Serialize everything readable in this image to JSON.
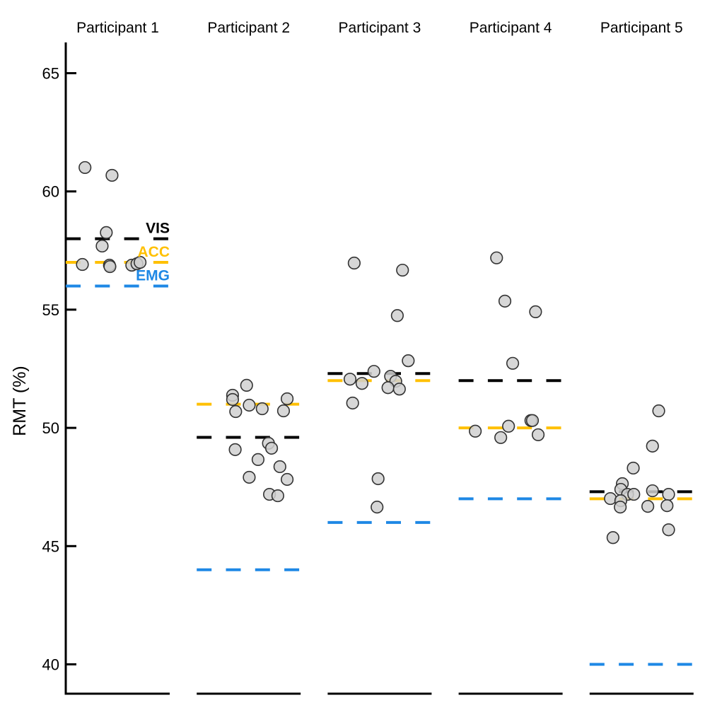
{
  "chart_data": {
    "type": "scatter",
    "title": "",
    "xlabel": "",
    "ylabel": "RMT (%)",
    "ylim": [
      38.76,
      66.3
    ],
    "yticks": [
      40,
      45,
      50,
      55,
      60,
      65
    ],
    "categories": [
      "Participant 1",
      "Participant 2",
      "Participant 3",
      "Participant 4",
      "Participant 5"
    ],
    "reference_lines": [
      {
        "name": "VIS",
        "color": "#000000",
        "values": [
          58,
          49.6,
          52.3,
          52,
          47.3
        ]
      },
      {
        "name": "ACC",
        "color": "#FFC000",
        "values": [
          57,
          51,
          52,
          50,
          47
        ]
      },
      {
        "name": "EMG",
        "color": "#1E88E5",
        "values": [
          56,
          44,
          46,
          47,
          40
        ]
      }
    ],
    "line_labels_in_category": "Participant 1",
    "points": [
      [
        {
          "x": -0.63,
          "y": 61.01
        },
        {
          "x": -0.11,
          "y": 60.68
        },
        {
          "x": -0.22,
          "y": 58.26
        },
        {
          "x": -0.3,
          "y": 57.69
        },
        {
          "x": -0.68,
          "y": 56.91
        },
        {
          "x": -0.16,
          "y": 56.88
        },
        {
          "x": -0.15,
          "y": 56.82
        },
        {
          "x": 0.27,
          "y": 56.88
        },
        {
          "x": 0.37,
          "y": 56.94
        },
        {
          "x": 0.43,
          "y": 57.0
        }
      ],
      [
        {
          "x": -0.04,
          "y": 51.8
        },
        {
          "x": -0.31,
          "y": 51.38
        },
        {
          "x": -0.31,
          "y": 51.2
        },
        {
          "x": 0.01,
          "y": 50.96
        },
        {
          "x": -0.25,
          "y": 50.69
        },
        {
          "x": 0.26,
          "y": 50.81
        },
        {
          "x": 0.74,
          "y": 51.23
        },
        {
          "x": 0.67,
          "y": 50.72
        },
        {
          "x": -0.26,
          "y": 49.08
        },
        {
          "x": 0.38,
          "y": 49.35
        },
        {
          "x": 0.44,
          "y": 49.14
        },
        {
          "x": 0.18,
          "y": 48.66
        },
        {
          "x": 0.6,
          "y": 48.36
        },
        {
          "x": 0.01,
          "y": 47.91
        },
        {
          "x": 0.74,
          "y": 47.82
        },
        {
          "x": 0.4,
          "y": 47.19
        },
        {
          "x": 0.56,
          "y": 47.13
        }
      ],
      [
        {
          "x": -0.49,
          "y": 56.97
        },
        {
          "x": 0.44,
          "y": 56.67
        },
        {
          "x": 0.34,
          "y": 54.75
        },
        {
          "x": 0.55,
          "y": 52.84
        },
        {
          "x": -0.57,
          "y": 52.06
        },
        {
          "x": -0.34,
          "y": 51.88
        },
        {
          "x": -0.11,
          "y": 52.39
        },
        {
          "x": 0.21,
          "y": 52.18
        },
        {
          "x": 0.31,
          "y": 51.97
        },
        {
          "x": 0.16,
          "y": 51.7
        },
        {
          "x": 0.38,
          "y": 51.64
        },
        {
          "x": -0.52,
          "y": 51.05
        },
        {
          "x": -0.03,
          "y": 47.85
        },
        {
          "x": -0.05,
          "y": 46.65
        }
      ],
      [
        {
          "x": -0.27,
          "y": 57.19
        },
        {
          "x": -0.11,
          "y": 55.36
        },
        {
          "x": 0.48,
          "y": 54.91
        },
        {
          "x": 0.04,
          "y": 52.73
        },
        {
          "x": -0.68,
          "y": 49.86
        },
        {
          "x": -0.04,
          "y": 50.07
        },
        {
          "x": -0.19,
          "y": 49.59
        },
        {
          "x": 0.39,
          "y": 50.31
        },
        {
          "x": 0.42,
          "y": 50.31
        },
        {
          "x": 0.53,
          "y": 49.71
        }
      ],
      [
        {
          "x": 0.33,
          "y": 50.72
        },
        {
          "x": 0.21,
          "y": 49.23
        },
        {
          "x": -0.16,
          "y": 48.3
        },
        {
          "x": -0.37,
          "y": 47.64
        },
        {
          "x": -0.4,
          "y": 47.4
        },
        {
          "x": -0.27,
          "y": 47.19
        },
        {
          "x": -0.15,
          "y": 47.19
        },
        {
          "x": -0.6,
          "y": 47.01
        },
        {
          "x": -0.4,
          "y": 46.92
        },
        {
          "x": -0.41,
          "y": 46.65
        },
        {
          "x": 0.21,
          "y": 47.34
        },
        {
          "x": 0.52,
          "y": 47.19
        },
        {
          "x": 0.12,
          "y": 46.68
        },
        {
          "x": 0.49,
          "y": 46.71
        },
        {
          "x": 0.52,
          "y": 45.69
        },
        {
          "x": -0.55,
          "y": 45.36
        }
      ]
    ],
    "point_style": {
      "fill": "#D0D0D0",
      "stroke": "#333333"
    },
    "grid": false,
    "legend": "none"
  }
}
